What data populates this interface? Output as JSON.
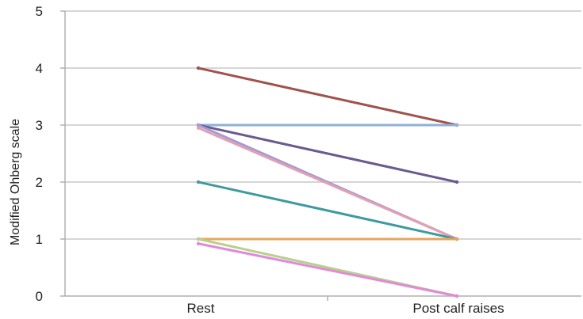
{
  "chart_data": {
    "type": "line",
    "categories": [
      "Rest",
      "Post calf raises"
    ],
    "ylabel": "Modified Ohberg scale",
    "xlabel": "",
    "title": "",
    "ylim": [
      0,
      5
    ],
    "yticks": [
      "0",
      "1",
      "2",
      "3",
      "4",
      "5"
    ],
    "grid": true,
    "series": [
      {
        "color": "#a0524d",
        "values": [
          4,
          3
        ]
      },
      {
        "color": "#8fb0d8",
        "values": [
          3,
          3
        ]
      },
      {
        "color": "#6a5a8e",
        "values": [
          3,
          2
        ]
      },
      {
        "color": "#a79ad0",
        "values": [
          3,
          1
        ]
      },
      {
        "color": "#e2a0b4",
        "values": [
          2.95,
          1
        ]
      },
      {
        "color": "#3f9a9e",
        "values": [
          2,
          1
        ]
      },
      {
        "color": "#e8a55c",
        "values": [
          1,
          1
        ]
      },
      {
        "color": "#b8cf8e",
        "values": [
          1,
          0
        ]
      },
      {
        "color": "#e08ad8",
        "values": [
          0.92,
          0
        ]
      }
    ]
  }
}
